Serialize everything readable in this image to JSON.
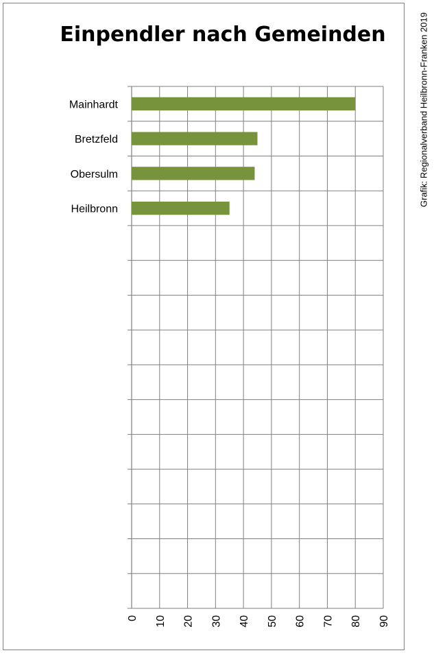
{
  "chart_data": {
    "type": "bar",
    "orientation": "horizontal",
    "title": "Einpendler nach Gemeinden",
    "credit": "Grafik: Regionalverband Heilbronn-Franken 2019",
    "categories": [
      "Mainhardt",
      "Bretzfeld",
      "Obersulm",
      "Heilbronn",
      "",
      "",
      "",
      "",
      "",
      "",
      "",
      "",
      "",
      "",
      ""
    ],
    "values": [
      80,
      45,
      44,
      35,
      null,
      null,
      null,
      null,
      null,
      null,
      null,
      null,
      null,
      null,
      null
    ],
    "xlim": [
      0,
      90
    ],
    "xticks": [
      "0",
      "10",
      "20",
      "30",
      "40",
      "50",
      "60",
      "70",
      "80",
      "90"
    ],
    "grid": true,
    "bar_color": "#77933c",
    "grid_color": "#7f7f7f"
  }
}
